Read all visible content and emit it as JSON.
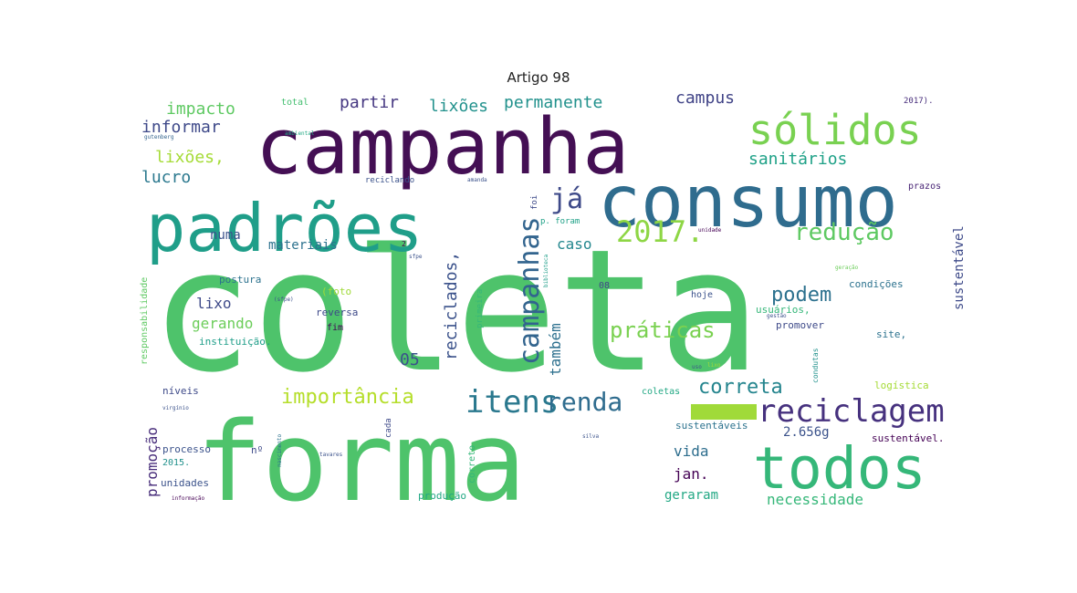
{
  "title": "Artigo 98",
  "words": [
    {
      "text": "coleta",
      "color": "#4ec36b"
    },
    {
      "text": "forma",
      "color": "#4ec36b"
    },
    {
      "text": "campanha",
      "color": "#440f54"
    },
    {
      "text": "consumo",
      "color": "#2f6c8e"
    },
    {
      "text": "padrões",
      "color": "#1f9e89"
    },
    {
      "text": "sólidos",
      "color": "#79d151"
    },
    {
      "text": "todos",
      "color": "#35b779"
    },
    {
      "text": "reciclagem",
      "color": "#46317e"
    },
    {
      "text": "itens",
      "color": "#2a788e"
    },
    {
      "text": "renda",
      "color": "#2f6c8e"
    },
    {
      "text": "campanhas",
      "color": "#32648e"
    },
    {
      "text": "já",
      "color": "#3e4a89"
    },
    {
      "text": "2017.",
      "color": "#8ed645"
    },
    {
      "text": "redução",
      "color": "#5ec962"
    },
    {
      "text": "práticas",
      "color": "#7ad151"
    },
    {
      "text": "podem",
      "color": "#2c718e"
    },
    {
      "text": "importância",
      "color": "#b5de2b"
    },
    {
      "text": "correta",
      "color": "#25858e"
    },
    {
      "text": "reciclados,",
      "color": "#3b528b"
    },
    {
      "text": "também",
      "color": "#2d708e"
    },
    {
      "text": "sanitários",
      "color": "#1fa187"
    },
    {
      "text": "campus",
      "color": "#414487"
    },
    {
      "text": "permanente",
      "color": "#21918c"
    },
    {
      "text": "impacto",
      "color": "#5ec962"
    },
    {
      "text": "informar",
      "color": "#3e4989"
    },
    {
      "text": "lixões,",
      "color": "#a5db36"
    },
    {
      "text": "lucro",
      "color": "#2a788e"
    },
    {
      "text": "partir",
      "color": "#453781"
    },
    {
      "text": "lixões",
      "color": "#21918c"
    },
    {
      "text": "numa",
      "color": "#3b528b"
    },
    {
      "text": "materiais",
      "color": "#2c728e"
    },
    {
      "text": "caso",
      "color": "#24878e"
    },
    {
      "text": "lixo",
      "color": "#3e4a89"
    },
    {
      "text": "gerando",
      "color": "#6ccd5a"
    },
    {
      "text": "promoção",
      "color": "#472c7a"
    },
    {
      "text": "05",
      "color": "#3b528b"
    },
    {
      "text": "vida",
      "color": "#2e6e8e"
    },
    {
      "text": "jan.",
      "color": "#440154"
    },
    {
      "text": "geraram",
      "color": "#22a884"
    },
    {
      "text": "necessidade",
      "color": "#35b779"
    },
    {
      "text": "2.656g",
      "color": "#3b528b"
    },
    {
      "text": "sustentável",
      "color": "#3e4a89"
    },
    {
      "text": "total",
      "color": "#44bf70"
    },
    {
      "text": "2017).",
      "color": "#472d7b"
    },
    {
      "text": "gutenberg",
      "color": "#33638d"
    },
    {
      "text": "ambiental",
      "color": "#22a884"
    },
    {
      "text": "reciclando",
      "color": "#3b528b"
    },
    {
      "text": "prazos",
      "color": "#482475"
    },
    {
      "text": "foi",
      "color": "#3e4a89"
    },
    {
      "text": "p. foram",
      "color": "#1fa187"
    },
    {
      "text": "unidade",
      "color": "#440154"
    },
    {
      "text": "biblioteca",
      "color": "#1f9e89"
    },
    {
      "text": "2",
      "color": "#440154"
    },
    {
      "text": "sfpe",
      "color": "#3b528b"
    },
    {
      "text": "geração",
      "color": "#6ccd5a"
    },
    {
      "text": "responsabilidade",
      "color": "#5ec962"
    },
    {
      "text": "postura",
      "color": "#2c728e"
    },
    {
      "text": "(foto",
      "color": "#a0da39"
    },
    {
      "text": "(sfpe)",
      "color": "#3b528b"
    },
    {
      "text": "reversa",
      "color": "#3e4a89"
    },
    {
      "text": "fim",
      "color": "#440154"
    },
    {
      "text": "instituição.",
      "color": "#1f9e89"
    },
    {
      "text": "08",
      "color": "#404688"
    },
    {
      "text": "hoje",
      "color": "#3b528b"
    },
    {
      "text": "condições",
      "color": "#2c728e"
    },
    {
      "text": "usuários,",
      "color": "#35b779"
    },
    {
      "text": "gestão",
      "color": "#3b528b"
    },
    {
      "text": "promover",
      "color": "#3e4a89"
    },
    {
      "text": "site,",
      "color": "#2c728e"
    },
    {
      "text": "primeira",
      "color": "#35b779"
    },
    {
      "text": "condutas",
      "color": "#21918c"
    },
    {
      "text": "uso",
      "color": "#3b528b"
    },
    {
      "text": "lixo",
      "color": "#a0da39"
    },
    {
      "text": "logística",
      "color": "#a5db36"
    },
    {
      "text": "níveis",
      "color": "#3e4a89"
    },
    {
      "text": "virgínio",
      "color": "#3b528b"
    },
    {
      "text": "coletas",
      "color": "#22a884"
    },
    {
      "text": "cada",
      "color": "#3e4a89"
    },
    {
      "text": "sustentáveis",
      "color": "#2c728e"
    },
    {
      "text": "silva",
      "color": "#3b528b"
    },
    {
      "text": "sustentável.",
      "color": "#440154"
    },
    {
      "text": "nº",
      "color": "#3e4a89"
    },
    {
      "text": "processo",
      "color": "#3b528b"
    },
    {
      "text": "2015.",
      "color": "#21918c"
    },
    {
      "text": "unidades",
      "color": "#3b528b"
    },
    {
      "text": "informação",
      "color": "#440154"
    },
    {
      "text": "nascimento",
      "color": "#2c728e"
    },
    {
      "text": "tavares",
      "color": "#3b528b"
    },
    {
      "text": "correto",
      "color": "#35b779"
    },
    {
      "text": "produção",
      "color": "#22a884"
    },
    {
      "text": "amanda",
      "color": "#3b528b"
    }
  ]
}
